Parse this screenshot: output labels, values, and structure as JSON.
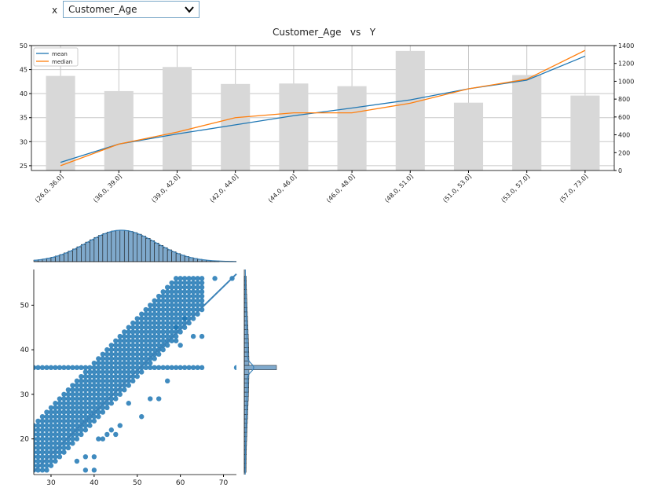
{
  "controls": {
    "x_label": "x",
    "x_selected": "Customer_Age"
  },
  "chart_data": [
    {
      "type": "bar",
      "title": "Customer_Age   vs   Y",
      "categories": [
        "(26.0, 36.0]",
        "(36.0, 39.0]",
        "(39.0, 42.0]",
        "(42.0, 44.0]",
        "(44.0, 46.0]",
        "(46.0, 48.0]",
        "(48.0, 51.0]",
        "(51.0, 53.0]",
        "(53.0, 57.0]",
        "(57.0, 73.0]"
      ],
      "bar_axis": {
        "side": "right",
        "ylim": [
          0,
          1400
        ],
        "ticks": [
          0,
          200,
          400,
          600,
          800,
          1000,
          1200,
          1400
        ]
      },
      "bar_values": [
        1060,
        890,
        1160,
        970,
        975,
        945,
        1340,
        760,
        1070,
        840
      ],
      "line_axis": {
        "side": "left",
        "ylim": [
          24,
          50
        ],
        "ticks": [
          25,
          30,
          35,
          40,
          45,
          50
        ]
      },
      "series": [
        {
          "name": "mean",
          "color": "#1f77b4",
          "values": [
            25.7,
            29.5,
            31.6,
            33.5,
            35.4,
            37.0,
            38.7,
            41.0,
            42.8,
            47.8
          ]
        },
        {
          "name": "median",
          "color": "#ff7f0e",
          "values": [
            25.0,
            29.5,
            32.0,
            35.0,
            36.0,
            36.0,
            38.0,
            41.0,
            43.0,
            49.0
          ]
        }
      ],
      "legend_position": "top-left",
      "grid": true
    },
    {
      "type": "scatter",
      "xlim": [
        26,
        73
      ],
      "ylim": [
        12,
        58
      ],
      "xticks": [
        30,
        40,
        50,
        60,
        70
      ],
      "yticks": [
        20,
        30,
        40,
        50
      ],
      "color": "#1f77b4",
      "regression": {
        "x0": 26,
        "y0": 12.7,
        "x1": 73,
        "y1": 57.0
      },
      "outliers": [
        [
          73,
          36
        ],
        [
          65,
          43
        ],
        [
          68,
          56
        ],
        [
          72,
          56
        ],
        [
          61,
          47
        ],
        [
          59,
          42
        ],
        [
          63,
          43
        ],
        [
          60,
          41
        ],
        [
          46,
          23
        ],
        [
          48,
          28
        ],
        [
          53,
          29
        ],
        [
          55,
          29
        ],
        [
          57,
          33
        ],
        [
          41,
          20
        ],
        [
          38,
          16
        ],
        [
          43,
          21
        ],
        [
          44,
          22
        ],
        [
          40,
          16
        ],
        [
          36,
          15
        ],
        [
          38,
          13
        ],
        [
          40,
          13
        ],
        [
          42,
          20
        ],
        [
          45,
          21
        ],
        [
          51,
          25
        ],
        [
          59,
          45
        ]
      ],
      "grid": false
    }
  ]
}
